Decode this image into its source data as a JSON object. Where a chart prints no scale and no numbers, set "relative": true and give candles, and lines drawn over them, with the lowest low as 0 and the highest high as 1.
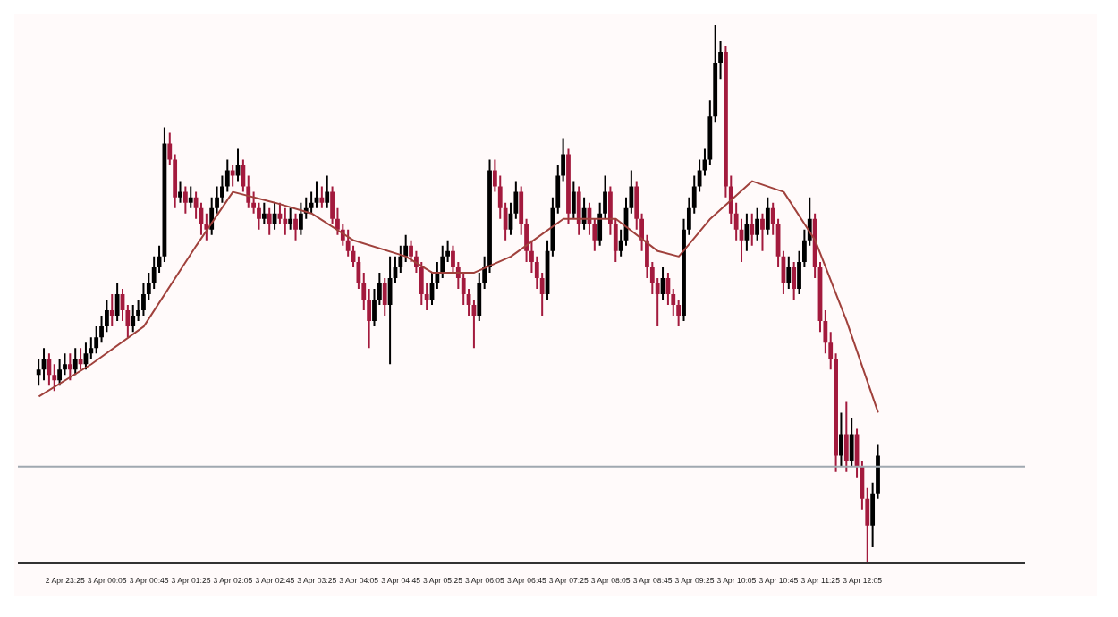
{
  "chart_data": {
    "type": "candlestick",
    "relative": true,
    "grid": false,
    "xlim": [
      "--04-02T22:40",
      "--04-03T14:40"
    ],
    "xticks": [
      {
        "value": "--04-02T23:25",
        "label": "2 Apr 23:25"
      },
      {
        "value": "--04-03T00:05",
        "label": "3 Apr 00:05"
      },
      {
        "value": "--04-03T00:45",
        "label": "3 Apr 00:45"
      },
      {
        "value": "--04-03T01:25",
        "label": "3 Apr 01:25"
      },
      {
        "value": "--04-03T02:05",
        "label": "3 Apr 02:05"
      },
      {
        "value": "--04-03T02:45",
        "label": "3 Apr 02:45"
      },
      {
        "value": "--04-03T03:25",
        "label": "3 Apr 03:25"
      },
      {
        "value": "--04-03T04:05",
        "label": "3 Apr 04:05"
      },
      {
        "value": "--04-03T04:45",
        "label": "3 Apr 04:45"
      },
      {
        "value": "--04-03T05:25",
        "label": "3 Apr 05:25"
      },
      {
        "value": "--04-03T06:05",
        "label": "3 Apr 06:05"
      },
      {
        "value": "--04-03T06:45",
        "label": "3 Apr 06:45"
      },
      {
        "value": "--04-03T07:25",
        "label": "3 Apr 07:25"
      },
      {
        "value": "--04-03T08:05",
        "label": "3 Apr 08:05"
      },
      {
        "value": "--04-03T08:45",
        "label": "3 Apr 08:45"
      },
      {
        "value": "--04-03T09:25",
        "label": "3 Apr 09:25"
      },
      {
        "value": "--04-03T10:05",
        "label": "3 Apr 10:05"
      },
      {
        "value": "--04-03T10:45",
        "label": "3 Apr 10:45"
      },
      {
        "value": "--04-03T11:25",
        "label": "3 Apr 11:25"
      },
      {
        "value": "--04-03T12:05",
        "label": "3 Apr 12:05"
      }
    ],
    "x": [
      "--04-02T23:00",
      "--04-02T23:05",
      "--04-02T23:10",
      "--04-02T23:15",
      "--04-02T23:20",
      "--04-02T23:25",
      "--04-02T23:30",
      "--04-02T23:35",
      "--04-02T23:40",
      "--04-02T23:45",
      "--04-02T23:50",
      "--04-02T23:55",
      "--04-03T00:00",
      "--04-03T00:05",
      "--04-03T00:10",
      "--04-03T00:15",
      "--04-03T00:20",
      "--04-03T00:25",
      "--04-03T00:30",
      "--04-03T00:35",
      "--04-03T00:40",
      "--04-03T00:45",
      "--04-03T00:50",
      "--04-03T00:55",
      "--04-03T01:00",
      "--04-03T01:05",
      "--04-03T01:10",
      "--04-03T01:15",
      "--04-03T01:20",
      "--04-03T01:25",
      "--04-03T01:30",
      "--04-03T01:35",
      "--04-03T01:40",
      "--04-03T01:45",
      "--04-03T01:50",
      "--04-03T01:55",
      "--04-03T02:00",
      "--04-03T02:05",
      "--04-03T02:10",
      "--04-03T02:15",
      "--04-03T02:20",
      "--04-03T02:25",
      "--04-03T02:30",
      "--04-03T02:35",
      "--04-03T02:40",
      "--04-03T02:45",
      "--04-03T02:50",
      "--04-03T02:55",
      "--04-03T03:00",
      "--04-03T03:05",
      "--04-03T03:10",
      "--04-03T03:15",
      "--04-03T03:20",
      "--04-03T03:25",
      "--04-03T03:30",
      "--04-03T03:35",
      "--04-03T03:40",
      "--04-03T03:45",
      "--04-03T03:50",
      "--04-03T03:55",
      "--04-03T04:00",
      "--04-03T04:05",
      "--04-03T04:10",
      "--04-03T04:15",
      "--04-03T04:20",
      "--04-03T04:25",
      "--04-03T04:30",
      "--04-03T04:35",
      "--04-03T04:40",
      "--04-03T04:45",
      "--04-03T04:50",
      "--04-03T04:55",
      "--04-03T05:00",
      "--04-03T05:05",
      "--04-03T05:10",
      "--04-03T05:15",
      "--04-03T05:20",
      "--04-03T05:25",
      "--04-03T05:30",
      "--04-03T05:35",
      "--04-03T05:40",
      "--04-03T05:45",
      "--04-03T05:50",
      "--04-03T05:55",
      "--04-03T06:00",
      "--04-03T06:05",
      "--04-03T06:10",
      "--04-03T06:15",
      "--04-03T06:20",
      "--04-03T06:25",
      "--04-03T06:30",
      "--04-03T06:35",
      "--04-03T06:40",
      "--04-03T06:45",
      "--04-03T06:50",
      "--04-03T06:55",
      "--04-03T07:00",
      "--04-03T07:05",
      "--04-03T07:10",
      "--04-03T07:15",
      "--04-03T07:20",
      "--04-03T07:25",
      "--04-03T07:30",
      "--04-03T07:35",
      "--04-03T07:40",
      "--04-03T07:45",
      "--04-03T07:50",
      "--04-03T07:55",
      "--04-03T08:00",
      "--04-03T08:05",
      "--04-03T08:10",
      "--04-03T08:15",
      "--04-03T08:20",
      "--04-03T08:25",
      "--04-03T08:30",
      "--04-03T08:35",
      "--04-03T08:40",
      "--04-03T08:45",
      "--04-03T08:50",
      "--04-03T08:55",
      "--04-03T09:00",
      "--04-03T09:05",
      "--04-03T09:10",
      "--04-03T09:15",
      "--04-03T09:20",
      "--04-03T09:25",
      "--04-03T09:30",
      "--04-03T09:35",
      "--04-03T09:40",
      "--04-03T09:45",
      "--04-03T09:50",
      "--04-03T09:55",
      "--04-03T10:00",
      "--04-03T10:05",
      "--04-03T10:10",
      "--04-03T10:15",
      "--04-03T10:20",
      "--04-03T10:25",
      "--04-03T10:30",
      "--04-03T10:35",
      "--04-03T10:40",
      "--04-03T10:45",
      "--04-03T10:50",
      "--04-03T10:55",
      "--04-03T11:00",
      "--04-03T11:05",
      "--04-03T11:10",
      "--04-03T11:15",
      "--04-03T11:20",
      "--04-03T11:25",
      "--04-03T11:30",
      "--04-03T11:35",
      "--04-03T11:40",
      "--04-03T11:45",
      "--04-03T11:50",
      "--04-03T11:55",
      "--04-03T12:00",
      "--04-03T12:05",
      "--04-03T12:10",
      "--04-03T12:15",
      "--04-03T12:20"
    ],
    "ohlc": [
      [
        0.35,
        0.38,
        0.33,
        0.36
      ],
      [
        0.36,
        0.4,
        0.34,
        0.38
      ],
      [
        0.38,
        0.39,
        0.33,
        0.35
      ],
      [
        0.35,
        0.37,
        0.32,
        0.34
      ],
      [
        0.34,
        0.38,
        0.33,
        0.36
      ],
      [
        0.36,
        0.39,
        0.35,
        0.37
      ],
      [
        0.37,
        0.39,
        0.34,
        0.36
      ],
      [
        0.36,
        0.4,
        0.35,
        0.38
      ],
      [
        0.38,
        0.4,
        0.36,
        0.37
      ],
      [
        0.37,
        0.41,
        0.36,
        0.39
      ],
      [
        0.39,
        0.42,
        0.38,
        0.4
      ],
      [
        0.4,
        0.44,
        0.39,
        0.42
      ],
      [
        0.42,
        0.46,
        0.41,
        0.44
      ],
      [
        0.44,
        0.49,
        0.43,
        0.47
      ],
      [
        0.47,
        0.5,
        0.44,
        0.46
      ],
      [
        0.46,
        0.52,
        0.45,
        0.5
      ],
      [
        0.5,
        0.51,
        0.45,
        0.47
      ],
      [
        0.47,
        0.48,
        0.42,
        0.44
      ],
      [
        0.44,
        0.48,
        0.43,
        0.46
      ],
      [
        0.46,
        0.49,
        0.45,
        0.47
      ],
      [
        0.47,
        0.52,
        0.46,
        0.5
      ],
      [
        0.5,
        0.54,
        0.49,
        0.52
      ],
      [
        0.52,
        0.57,
        0.51,
        0.55
      ],
      [
        0.55,
        0.59,
        0.54,
        0.57
      ],
      [
        0.57,
        0.81,
        0.56,
        0.78
      ],
      [
        0.78,
        0.8,
        0.74,
        0.75
      ],
      [
        0.75,
        0.76,
        0.66,
        0.68
      ],
      [
        0.68,
        0.71,
        0.67,
        0.69
      ],
      [
        0.69,
        0.7,
        0.65,
        0.67
      ],
      [
        0.67,
        0.7,
        0.66,
        0.68
      ],
      [
        0.68,
        0.69,
        0.64,
        0.66
      ],
      [
        0.66,
        0.67,
        0.61,
        0.63
      ],
      [
        0.63,
        0.65,
        0.6,
        0.62
      ],
      [
        0.62,
        0.68,
        0.61,
        0.66
      ],
      [
        0.66,
        0.7,
        0.65,
        0.68
      ],
      [
        0.68,
        0.72,
        0.67,
        0.7
      ],
      [
        0.7,
        0.75,
        0.69,
        0.73
      ],
      [
        0.73,
        0.74,
        0.7,
        0.72
      ],
      [
        0.72,
        0.77,
        0.71,
        0.74
      ],
      [
        0.74,
        0.75,
        0.69,
        0.7
      ],
      [
        0.7,
        0.72,
        0.66,
        0.67
      ],
      [
        0.67,
        0.69,
        0.65,
        0.66
      ],
      [
        0.66,
        0.67,
        0.62,
        0.64
      ],
      [
        0.64,
        0.67,
        0.63,
        0.65
      ],
      [
        0.65,
        0.66,
        0.61,
        0.63
      ],
      [
        0.63,
        0.67,
        0.62,
        0.65
      ],
      [
        0.65,
        0.67,
        0.63,
        0.64
      ],
      [
        0.64,
        0.66,
        0.61,
        0.63
      ],
      [
        0.63,
        0.66,
        0.62,
        0.64
      ],
      [
        0.64,
        0.65,
        0.6,
        0.62
      ],
      [
        0.62,
        0.67,
        0.61,
        0.65
      ],
      [
        0.65,
        0.68,
        0.64,
        0.66
      ],
      [
        0.66,
        0.69,
        0.65,
        0.67
      ],
      [
        0.67,
        0.71,
        0.66,
        0.68
      ],
      [
        0.68,
        0.7,
        0.66,
        0.67
      ],
      [
        0.67,
        0.72,
        0.66,
        0.69
      ],
      [
        0.69,
        0.7,
        0.63,
        0.64
      ],
      [
        0.64,
        0.66,
        0.61,
        0.62
      ],
      [
        0.62,
        0.63,
        0.59,
        0.6
      ],
      [
        0.6,
        0.62,
        0.57,
        0.58
      ],
      [
        0.58,
        0.59,
        0.55,
        0.56
      ],
      [
        0.56,
        0.57,
        0.51,
        0.52
      ],
      [
        0.52,
        0.54,
        0.47,
        0.49
      ],
      [
        0.49,
        0.51,
        0.4,
        0.45
      ],
      [
        0.45,
        0.51,
        0.44,
        0.49
      ],
      [
        0.49,
        0.54,
        0.48,
        0.52
      ],
      [
        0.52,
        0.53,
        0.46,
        0.48
      ],
      [
        0.48,
        0.57,
        0.37,
        0.53
      ],
      [
        0.53,
        0.57,
        0.52,
        0.55
      ],
      [
        0.55,
        0.59,
        0.54,
        0.57
      ],
      [
        0.57,
        0.61,
        0.56,
        0.59
      ],
      [
        0.59,
        0.6,
        0.56,
        0.57
      ],
      [
        0.57,
        0.58,
        0.54,
        0.55
      ],
      [
        0.55,
        0.56,
        0.48,
        0.5
      ],
      [
        0.5,
        0.52,
        0.47,
        0.49
      ],
      [
        0.49,
        0.54,
        0.48,
        0.52
      ],
      [
        0.52,
        0.56,
        0.51,
        0.54
      ],
      [
        0.54,
        0.59,
        0.53,
        0.57
      ],
      [
        0.57,
        0.6,
        0.56,
        0.58
      ],
      [
        0.58,
        0.59,
        0.54,
        0.55
      ],
      [
        0.55,
        0.56,
        0.51,
        0.53
      ],
      [
        0.53,
        0.54,
        0.48,
        0.5
      ],
      [
        0.5,
        0.51,
        0.46,
        0.48
      ],
      [
        0.48,
        0.49,
        0.4,
        0.46
      ],
      [
        0.46,
        0.54,
        0.45,
        0.52
      ],
      [
        0.52,
        0.57,
        0.51,
        0.55
      ],
      [
        0.55,
        0.75,
        0.54,
        0.73
      ],
      [
        0.73,
        0.75,
        0.69,
        0.7
      ],
      [
        0.7,
        0.72,
        0.64,
        0.66
      ],
      [
        0.66,
        0.67,
        0.6,
        0.62
      ],
      [
        0.62,
        0.67,
        0.61,
        0.65
      ],
      [
        0.65,
        0.71,
        0.64,
        0.69
      ],
      [
        0.69,
        0.7,
        0.61,
        0.63
      ],
      [
        0.63,
        0.64,
        0.56,
        0.58
      ],
      [
        0.58,
        0.6,
        0.54,
        0.56
      ],
      [
        0.56,
        0.57,
        0.51,
        0.53
      ],
      [
        0.53,
        0.54,
        0.46,
        0.5
      ],
      [
        0.5,
        0.6,
        0.49,
        0.58
      ],
      [
        0.58,
        0.68,
        0.57,
        0.66
      ],
      [
        0.66,
        0.74,
        0.65,
        0.72
      ],
      [
        0.72,
        0.79,
        0.71,
        0.76
      ],
      [
        0.76,
        0.77,
        0.63,
        0.65
      ],
      [
        0.65,
        0.71,
        0.64,
        0.69
      ],
      [
        0.69,
        0.7,
        0.61,
        0.63
      ],
      [
        0.63,
        0.68,
        0.62,
        0.66
      ],
      [
        0.66,
        0.67,
        0.61,
        0.63
      ],
      [
        0.63,
        0.64,
        0.58,
        0.6
      ],
      [
        0.6,
        0.67,
        0.59,
        0.65
      ],
      [
        0.65,
        0.72,
        0.64,
        0.69
      ],
      [
        0.69,
        0.7,
        0.61,
        0.63
      ],
      [
        0.63,
        0.64,
        0.56,
        0.58
      ],
      [
        0.58,
        0.62,
        0.57,
        0.6
      ],
      [
        0.6,
        0.68,
        0.59,
        0.66
      ],
      [
        0.66,
        0.73,
        0.65,
        0.7
      ],
      [
        0.7,
        0.71,
        0.62,
        0.64
      ],
      [
        0.64,
        0.65,
        0.58,
        0.6
      ],
      [
        0.6,
        0.61,
        0.53,
        0.55
      ],
      [
        0.55,
        0.56,
        0.5,
        0.52
      ],
      [
        0.52,
        0.53,
        0.44,
        0.5
      ],
      [
        0.5,
        0.55,
        0.49,
        0.53
      ],
      [
        0.53,
        0.54,
        0.48,
        0.5
      ],
      [
        0.5,
        0.51,
        0.46,
        0.48
      ],
      [
        0.48,
        0.49,
        0.44,
        0.46
      ],
      [
        0.46,
        0.64,
        0.45,
        0.62
      ],
      [
        0.62,
        0.68,
        0.61,
        0.66
      ],
      [
        0.66,
        0.72,
        0.65,
        0.7
      ],
      [
        0.7,
        0.75,
        0.69,
        0.73
      ],
      [
        0.73,
        0.77,
        0.72,
        0.75
      ],
      [
        0.75,
        0.86,
        0.74,
        0.83
      ],
      [
        0.83,
        1,
        0.82,
        0.93
      ],
      [
        0.93,
        0.97,
        0.9,
        0.95
      ],
      [
        0.95,
        0.96,
        0.68,
        0.7
      ],
      [
        0.7,
        0.72,
        0.63,
        0.65
      ],
      [
        0.65,
        0.67,
        0.6,
        0.62
      ],
      [
        0.62,
        0.64,
        0.56,
        0.6
      ],
      [
        0.6,
        0.65,
        0.58,
        0.63
      ],
      [
        0.63,
        0.65,
        0.59,
        0.61
      ],
      [
        0.61,
        0.66,
        0.6,
        0.64
      ],
      [
        0.64,
        0.65,
        0.58,
        0.62
      ],
      [
        0.62,
        0.68,
        0.61,
        0.66
      ],
      [
        0.66,
        0.67,
        0.61,
        0.63
      ],
      [
        0.63,
        0.64,
        0.55,
        0.57
      ],
      [
        0.57,
        0.58,
        0.5,
        0.52
      ],
      [
        0.52,
        0.57,
        0.51,
        0.55
      ],
      [
        0.55,
        0.56,
        0.49,
        0.51
      ],
      [
        0.51,
        0.58,
        0.5,
        0.56
      ],
      [
        0.56,
        0.62,
        0.55,
        0.6
      ],
      [
        0.6,
        0.68,
        0.59,
        0.64
      ],
      [
        0.64,
        0.65,
        0.53,
        0.55
      ],
      [
        0.55,
        0.56,
        0.43,
        0.45
      ],
      [
        0.45,
        0.47,
        0.39,
        0.41
      ],
      [
        0.41,
        0.43,
        0.36,
        0.38
      ],
      [
        0.38,
        0.39,
        0.17,
        0.2
      ],
      [
        0.2,
        0.28,
        0.18,
        0.24
      ],
      [
        0.24,
        0.3,
        0.17,
        0.19
      ],
      [
        0.19,
        0.27,
        0.18,
        0.24
      ],
      [
        0.24,
        0.25,
        0.16,
        0.18
      ],
      [
        0.18,
        0.19,
        0.1,
        0.12
      ],
      [
        0.12,
        0.14,
        0,
        0.07
      ],
      [
        0.07,
        0.15,
        0.03,
        0.13
      ],
      [
        0.13,
        0.22,
        0.12,
        0.2
      ]
    ],
    "colors": [
      "#000000",
      "#000000",
      "#a31a3d",
      "#a31a3d",
      "#000000",
      "#000000",
      "#a31a3d",
      "#000000",
      "#a31a3d",
      "#000000",
      "#000000",
      "#000000",
      "#000000",
      "#000000",
      "#a31a3d",
      "#000000",
      "#a31a3d",
      "#a31a3d",
      "#000000",
      "#000000",
      "#000000",
      "#000000",
      "#000000",
      "#000000",
      "#000000",
      "#a31a3d",
      "#a31a3d",
      "#000000",
      "#a31a3d",
      "#000000",
      "#a31a3d",
      "#a31a3d",
      "#a31a3d",
      "#000000",
      "#000000",
      "#000000",
      "#000000",
      "#a31a3d",
      "#000000",
      "#a31a3d",
      "#a31a3d",
      "#a31a3d",
      "#a31a3d",
      "#000000",
      "#a31a3d",
      "#000000",
      "#a31a3d",
      "#a31a3d",
      "#000000",
      "#a31a3d",
      "#000000",
      "#000000",
      "#000000",
      "#000000",
      "#a31a3d",
      "#000000",
      "#a31a3d",
      "#a31a3d",
      "#a31a3d",
      "#a31a3d",
      "#a31a3d",
      "#a31a3d",
      "#a31a3d",
      "#a31a3d",
      "#000000",
      "#000000",
      "#a31a3d",
      "#000000",
      "#000000",
      "#000000",
      "#000000",
      "#a31a3d",
      "#a31a3d",
      "#a31a3d",
      "#a31a3d",
      "#000000",
      "#000000",
      "#000000",
      "#000000",
      "#a31a3d",
      "#a31a3d",
      "#a31a3d",
      "#a31a3d",
      "#a31a3d",
      "#000000",
      "#000000",
      "#000000",
      "#a31a3d",
      "#a31a3d",
      "#a31a3d",
      "#000000",
      "#000000",
      "#a31a3d",
      "#a31a3d",
      "#a31a3d",
      "#a31a3d",
      "#a31a3d",
      "#000000",
      "#000000",
      "#000000",
      "#000000",
      "#a31a3d",
      "#000000",
      "#a31a3d",
      "#000000",
      "#a31a3d",
      "#a31a3d",
      "#000000",
      "#000000",
      "#a31a3d",
      "#a31a3d",
      "#000000",
      "#000000",
      "#000000",
      "#a31a3d",
      "#a31a3d",
      "#a31a3d",
      "#a31a3d",
      "#a31a3d",
      "#000000",
      "#a31a3d",
      "#a31a3d",
      "#a31a3d",
      "#000000",
      "#000000",
      "#000000",
      "#000000",
      "#000000",
      "#000000",
      "#000000",
      "#000000",
      "#a31a3d",
      "#a31a3d",
      "#a31a3d",
      "#a31a3d",
      "#000000",
      "#a31a3d",
      "#000000",
      "#a31a3d",
      "#000000",
      "#a31a3d",
      "#a31a3d",
      "#a31a3d",
      "#000000",
      "#a31a3d",
      "#000000",
      "#000000",
      "#000000",
      "#a31a3d",
      "#a31a3d",
      "#a31a3d",
      "#a31a3d",
      "#a31a3d",
      "#000000",
      "#a31a3d",
      "#000000",
      "#a31a3d",
      "#a31a3d",
      "#a31a3d",
      "#000000",
      "#000000"
    ],
    "series": [
      {
        "type": "line",
        "color": "#a0413c",
        "x": [
          "--04-02T23:00",
          "--04-02T23:50",
          "--04-03T00:40",
          "--04-03T01:30",
          "--04-03T02:05",
          "--04-03T02:45",
          "--04-03T03:20",
          "--04-03T04:00",
          "--04-03T04:50",
          "--04-03T05:15",
          "--04-03T05:55",
          "--04-03T06:30",
          "--04-03T07:20",
          "--04-03T08:10",
          "--04-03T08:50",
          "--04-03T09:10",
          "--04-03T09:40",
          "--04-03T10:20",
          "--04-03T10:50",
          "--04-03T11:20",
          "--04-03T11:50",
          "--04-03T12:20"
        ],
        "values": [
          0.31,
          0.37,
          0.44,
          0.59,
          0.69,
          0.67,
          0.65,
          0.6,
          0.57,
          0.54,
          0.54,
          0.57,
          0.64,
          0.64,
          0.58,
          0.57,
          0.64,
          0.71,
          0.69,
          0.6,
          0.45,
          0.28
        ]
      }
    ],
    "ref_lines": [
      {
        "axis": "y",
        "value": 0.18,
        "color": "#a0a8b0"
      }
    ]
  }
}
